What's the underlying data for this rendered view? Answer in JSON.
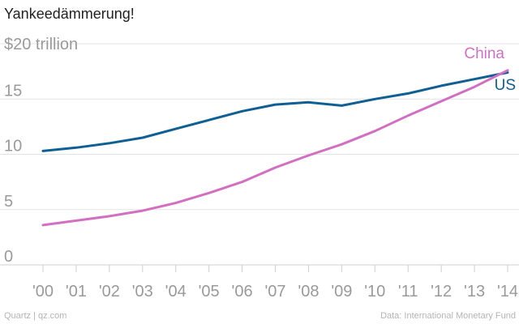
{
  "chart_data": {
    "type": "line",
    "title": "Yankeedämmerung!",
    "ylabel": "$20 trillion",
    "xlabel": "",
    "categories": [
      "'00",
      "'01",
      "'02",
      "'03",
      "'04",
      "'05",
      "'06",
      "'07",
      "'08",
      "'09",
      "'10",
      "'11",
      "'12",
      "'13",
      "'14"
    ],
    "ylim": [
      0,
      20
    ],
    "yticks": [
      0,
      5,
      10,
      15
    ],
    "grid": true,
    "series": [
      {
        "name": "US",
        "color": "#0f5f94",
        "values": [
          10.3,
          10.6,
          11.0,
          11.5,
          12.3,
          13.1,
          13.9,
          14.5,
          14.7,
          14.4,
          15.0,
          15.5,
          16.2,
          16.8,
          17.4
        ]
      },
      {
        "name": "China",
        "color": "#d36fc3",
        "values": [
          3.6,
          4.0,
          4.4,
          4.9,
          5.6,
          6.5,
          7.5,
          8.8,
          9.9,
          10.9,
          12.1,
          13.5,
          14.8,
          16.1,
          17.6
        ]
      }
    ],
    "annotations": [
      "China",
      "US"
    ]
  },
  "footer": {
    "source_left": "Quartz | qz.com",
    "source_right": "Data: International Monetary Fund"
  }
}
